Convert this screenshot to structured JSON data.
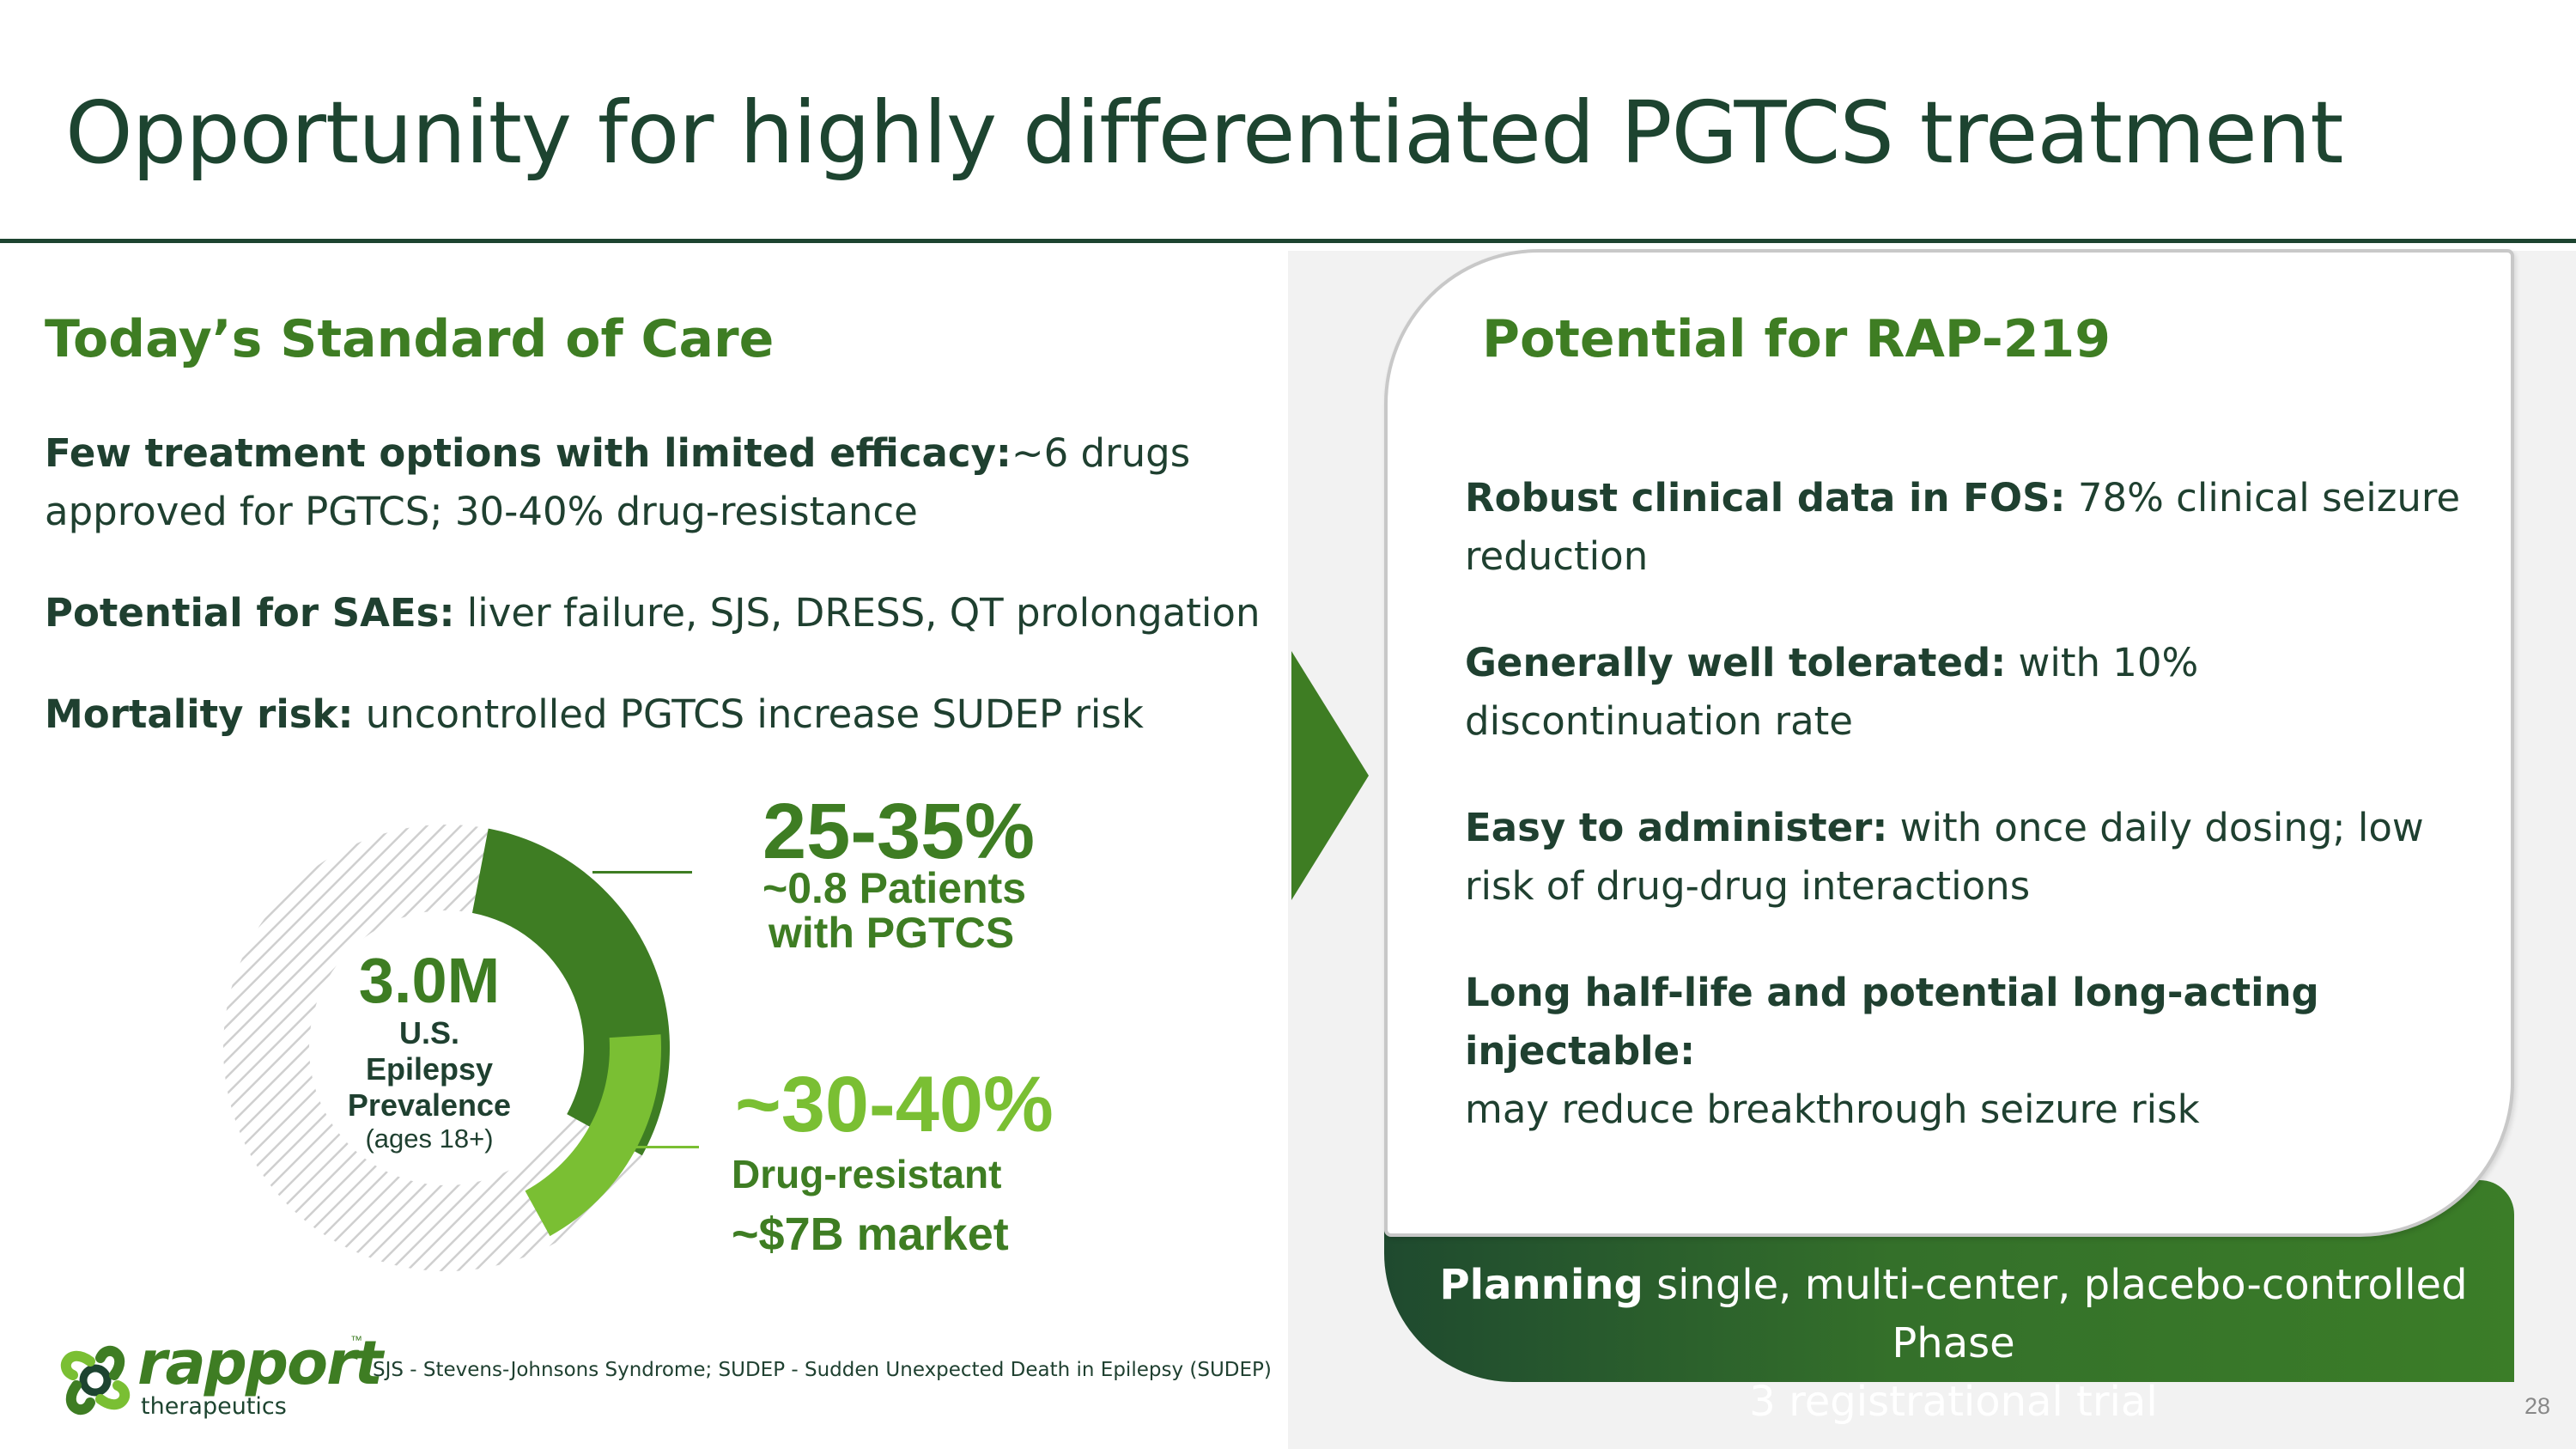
{
  "title": "Opportunity for highly differentiated PGTCS treatment",
  "left": {
    "heading": "Today’s Standard of Care",
    "items": [
      {
        "bold": "Few treatment options with limited efficacy:",
        "line1": "~6 drugs",
        "line2": "approved for PGTCS; 30-40% drug-resistance"
      },
      {
        "bold": "Potential for SAEs:",
        "text": "liver failure, SJS, DRESS, QT prolongation"
      },
      {
        "bold": "Mortality risk:",
        "text": "uncontrolled PGTCS increase SUDEP risk"
      }
    ]
  },
  "donut": {
    "value": "3.0M",
    "label_lines": [
      "U.S.",
      "Epilepsy",
      "Prevalence"
    ],
    "sublabel": "(ages 18+)",
    "segments": [
      {
        "name": "PGTCS share",
        "fraction": 0.3,
        "color": "#3e7d23"
      },
      {
        "name": "Drug-resistant share",
        "fraction": 0.09,
        "color": "#7abf33"
      }
    ]
  },
  "stats": {
    "stat1_value": "25-35%",
    "stat1_line1": "~0.8 Patients",
    "stat1_line2": "with PGTCS",
    "stat2_value": "~30-40%",
    "stat2_line1": "Drug-resistant",
    "stat2_line2": "~$7B market"
  },
  "right": {
    "heading": "Potential for RAP-219",
    "items": [
      {
        "bold": "Robust clinical data in FOS:",
        "line1": "78% clinical seizure",
        "line2": "reduction"
      },
      {
        "bold": "Generally well tolerated:",
        "line1": "with 10%",
        "line2": "discontinuation rate"
      },
      {
        "bold": "Easy to administer:",
        "line1": "with once daily dosing; low",
        "line2": "risk of drug-drug interactions"
      },
      {
        "bold": "Long half-life and potential long-acting injectable:",
        "line1": "",
        "line2": "may reduce breakthrough seizure risk"
      }
    ]
  },
  "banner": {
    "bold": "Planning",
    "line1": "single, multi-center, placebo-controlled Phase",
    "line2": "3 registrational trial"
  },
  "logo": {
    "name": "rapport",
    "tm": "™",
    "sub": "therapeutics"
  },
  "footnote": "SJS - Stevens-Johnsons Syndrome; SUDEP - Sudden Unexpected Death in Epilepsy (SUDEP)",
  "page_number": "28",
  "colors": {
    "dark_green": "#1d4430",
    "green": "#3e7d23",
    "light_green": "#7abf33",
    "text": "#1f4030"
  }
}
